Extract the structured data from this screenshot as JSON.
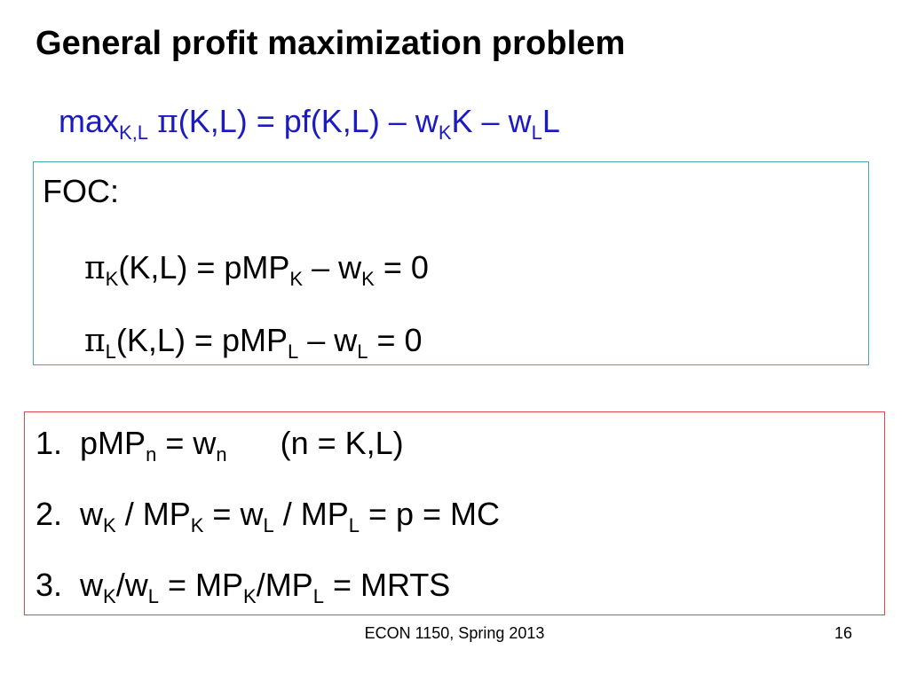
{
  "title": "General profit maximization problem",
  "colors": {
    "objective": "#1b1bc0",
    "foc_border": "#4aa9a9",
    "result_border": "#e2474c"
  },
  "objective": {
    "a": "max",
    "sub1": "K,L",
    "pi": "π",
    "b": "(K,L) = pf(K,L) – w",
    "sub2": "K",
    "c": "K – w",
    "sub3": "L",
    "d": "L"
  },
  "foc": {
    "label": "FOC:",
    "line1": {
      "pi": "π",
      "sub1": "K",
      "a": "(K,L) = pMP",
      "sub2": "K",
      "b": " – w",
      "sub3": "K",
      "c": " = 0"
    },
    "line2": {
      "pi": "π",
      "sub1": "L",
      "a": "(K,L) = pMP",
      "sub2": "L",
      "b": " – w",
      "sub3": "L",
      "c": " = 0"
    }
  },
  "results": [
    {
      "num": "1.",
      "a": "pMP",
      "s1": "n",
      "b": " = w",
      "s2": "n",
      "c": "(n = K,L)"
    },
    {
      "num": "2.",
      "a": "w",
      "s1": "K",
      "b": " / MP",
      "s2": "K",
      "c": " = w",
      "s3": "L",
      "d": " / MP",
      "s4": "L",
      "e": " = p = MC"
    },
    {
      "num": "3.",
      "a": "w",
      "s1": "K",
      "b": "/w",
      "s2": "L",
      "c": " = MP",
      "s3": "K",
      "d": "/MP",
      "s4": "L",
      "e": " = MRTS"
    }
  ],
  "footer": {
    "course": "ECON 1150, Spring 2013",
    "page": "16"
  }
}
